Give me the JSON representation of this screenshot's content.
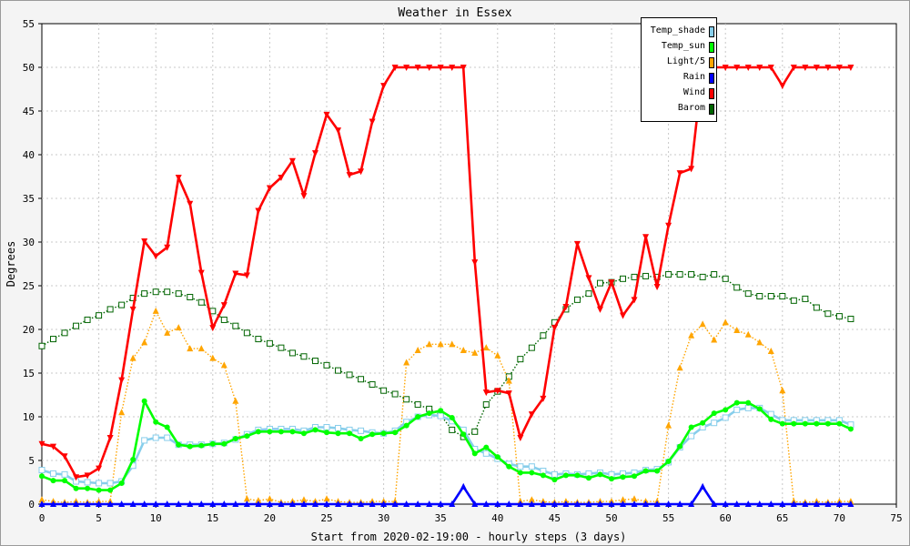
{
  "chart_data": {
    "type": "line",
    "title": "Weather in Essex",
    "xlabel": "Start from 2020-02-19:00 - hourly steps (3 days)",
    "ylabel": "Degrees",
    "xlim": [
      0,
      75
    ],
    "ylim": [
      0,
      55
    ],
    "xticks": [
      0,
      5,
      10,
      15,
      20,
      25,
      30,
      35,
      40,
      45,
      50,
      55,
      60,
      65,
      70,
      75
    ],
    "yticks": [
      0,
      5,
      10,
      15,
      20,
      25,
      30,
      35,
      40,
      45,
      50,
      55
    ],
    "grid": true,
    "legend_position": "top-right",
    "series": [
      {
        "name": "Barom",
        "color": "#006400",
        "style": "dotted",
        "marker": "square",
        "x": [
          0,
          1,
          2,
          3,
          4,
          5,
          6,
          7,
          8,
          9,
          10,
          11,
          12,
          13,
          14,
          15,
          16,
          17,
          18,
          19,
          20,
          21,
          22,
          23,
          24,
          25,
          26,
          27,
          28,
          29,
          30,
          31,
          32,
          33,
          34,
          35,
          36,
          37,
          38,
          39,
          40,
          41,
          42,
          43,
          44,
          45,
          46,
          47,
          48,
          49,
          50,
          51,
          52,
          53,
          54,
          55,
          56,
          57,
          58,
          59,
          60,
          61,
          62,
          63,
          64,
          65,
          66,
          67,
          68,
          69,
          70,
          71
        ],
        "y": [
          18.1,
          18.9,
          19.6,
          20.4,
          21.1,
          21.6,
          22.3,
          22.8,
          23.6,
          24.1,
          24.3,
          24.3,
          24.1,
          23.7,
          23.1,
          22.1,
          21.1,
          20.4,
          19.6,
          18.9,
          18.4,
          17.9,
          17.3,
          16.9,
          16.4,
          15.9,
          15.3,
          14.8,
          14.3,
          13.7,
          13.0,
          12.6,
          12.0,
          11.4,
          10.9,
          10.2,
          8.5,
          7.7,
          8.3,
          11.4,
          12.9,
          14.6,
          16.6,
          17.9,
          19.3,
          20.8,
          22.3,
          23.4,
          24.1,
          25.3,
          25.4,
          25.8,
          26.0,
          26.1,
          26.0,
          26.3,
          26.3,
          26.3,
          26.0,
          26.3,
          25.8,
          24.8,
          24.1,
          23.8,
          23.8,
          23.8,
          23.3,
          23.5,
          22.5,
          21.8,
          21.5,
          21.2
        ]
      },
      {
        "name": "Light/5",
        "color": "#ffa500",
        "style": "dotted",
        "marker": "triangle-up",
        "x": [
          0,
          1,
          2,
          3,
          4,
          5,
          6,
          7,
          8,
          9,
          10,
          11,
          12,
          13,
          14,
          15,
          16,
          17,
          18,
          19,
          20,
          21,
          22,
          23,
          24,
          25,
          26,
          27,
          28,
          29,
          30,
          31,
          32,
          33,
          34,
          35,
          36,
          37,
          38,
          39,
          40,
          41,
          42,
          43,
          44,
          45,
          46,
          47,
          48,
          49,
          50,
          51,
          52,
          53,
          54,
          55,
          56,
          57,
          58,
          59,
          60,
          61,
          62,
          63,
          64,
          65,
          66,
          67,
          68,
          69,
          70,
          71
        ],
        "y": [
          0.5,
          0.3,
          0.2,
          0.3,
          0.2,
          0.3,
          0.3,
          10.5,
          16.7,
          18.5,
          22.1,
          19.6,
          20.2,
          17.8,
          17.8,
          16.7,
          15.9,
          11.8,
          0.6,
          0.4,
          0.6,
          0.2,
          0.3,
          0.5,
          0.3,
          0.6,
          0.3,
          0.2,
          0.2,
          0.3,
          0.3,
          0.3,
          16.2,
          17.6,
          18.3,
          18.3,
          18.3,
          17.6,
          17.3,
          17.9,
          17.0,
          14.1,
          0.3,
          0.5,
          0.3,
          0.2,
          0.3,
          0.2,
          0.2,
          0.3,
          0.3,
          0.5,
          0.6,
          0.3,
          0.3,
          9.0,
          15.6,
          19.3,
          20.6,
          18.8,
          20.8,
          19.9,
          19.4,
          18.5,
          17.5,
          13.0,
          0.3,
          0.2,
          0.3,
          0.2,
          0.3,
          0.3
        ]
      },
      {
        "name": "Temp_shade",
        "color": "#87ceeb",
        "style": "solid",
        "marker": "square",
        "x": [
          0,
          1,
          2,
          3,
          4,
          5,
          6,
          7,
          8,
          9,
          10,
          11,
          12,
          13,
          14,
          15,
          16,
          17,
          18,
          19,
          20,
          21,
          22,
          23,
          24,
          25,
          26,
          27,
          28,
          29,
          30,
          31,
          32,
          33,
          34,
          35,
          36,
          37,
          38,
          39,
          40,
          41,
          42,
          43,
          44,
          45,
          46,
          47,
          48,
          49,
          50,
          51,
          52,
          53,
          54,
          55,
          56,
          57,
          58,
          59,
          60,
          61,
          62,
          63,
          64,
          65,
          66,
          67,
          68,
          69,
          70,
          71
        ],
        "y": [
          3.9,
          3.5,
          3.4,
          2.6,
          2.5,
          2.4,
          2.4,
          2.6,
          4.4,
          7.3,
          7.6,
          7.6,
          6.8,
          6.8,
          6.8,
          6.9,
          7.0,
          7.4,
          8.0,
          8.5,
          8.6,
          8.6,
          8.6,
          8.4,
          8.8,
          8.8,
          8.7,
          8.5,
          8.4,
          8.2,
          8.1,
          8.4,
          9.4,
          10.0,
          10.2,
          10.1,
          9.5,
          8.5,
          6.3,
          5.8,
          5.2,
          4.6,
          4.3,
          4.3,
          3.8,
          3.4,
          3.5,
          3.4,
          3.5,
          3.6,
          3.4,
          3.5,
          3.6,
          3.9,
          4.0,
          4.8,
          6.5,
          7.8,
          8.8,
          9.3,
          9.9,
          10.8,
          11.0,
          11.0,
          10.3,
          9.6,
          9.6,
          9.6,
          9.6,
          9.6,
          9.6,
          9.1
        ]
      },
      {
        "name": "Temp_sun",
        "color": "#00ff00",
        "style": "solid",
        "marker": "circle",
        "x": [
          0,
          1,
          2,
          3,
          4,
          5,
          6,
          7,
          8,
          9,
          10,
          11,
          12,
          13,
          14,
          15,
          16,
          17,
          18,
          19,
          20,
          21,
          22,
          23,
          24,
          25,
          26,
          27,
          28,
          29,
          30,
          31,
          32,
          33,
          34,
          35,
          36,
          37,
          38,
          39,
          40,
          41,
          42,
          43,
          44,
          45,
          46,
          47,
          48,
          49,
          50,
          51,
          52,
          53,
          54,
          55,
          56,
          57,
          58,
          59,
          60,
          61,
          62,
          63,
          64,
          65,
          66,
          67,
          68,
          69,
          70,
          71
        ],
        "y": [
          3.2,
          2.7,
          2.7,
          1.8,
          1.8,
          1.6,
          1.6,
          2.4,
          5.1,
          11.8,
          9.4,
          8.8,
          6.8,
          6.6,
          6.7,
          6.9,
          6.9,
          7.5,
          7.8,
          8.3,
          8.3,
          8.3,
          8.3,
          8.1,
          8.5,
          8.2,
          8.1,
          8.1,
          7.5,
          8.0,
          8.1,
          8.2,
          9.0,
          10.0,
          10.4,
          10.7,
          9.9,
          8.0,
          5.8,
          6.5,
          5.4,
          4.3,
          3.6,
          3.6,
          3.3,
          2.8,
          3.3,
          3.3,
          3.0,
          3.4,
          2.9,
          3.1,
          3.2,
          3.8,
          3.8,
          4.9,
          6.6,
          8.8,
          9.3,
          10.4,
          10.8,
          11.6,
          11.6,
          10.9,
          9.7,
          9.2,
          9.2,
          9.2,
          9.2,
          9.2,
          9.2,
          8.6
        ]
      },
      {
        "name": "Wind",
        "color": "#ff0000",
        "style": "solid",
        "marker": "triangle-down",
        "x": [
          0,
          1,
          2,
          3,
          4,
          5,
          6,
          7,
          8,
          9,
          10,
          11,
          12,
          13,
          14,
          15,
          16,
          17,
          18,
          19,
          20,
          21,
          22,
          23,
          24,
          25,
          26,
          27,
          28,
          29,
          30,
          31,
          32,
          33,
          34,
          35,
          36,
          37,
          38,
          39,
          40,
          41,
          42,
          43,
          44,
          45,
          46,
          47,
          48,
          49,
          50,
          51,
          52,
          53,
          54,
          55,
          56,
          57,
          58,
          59,
          60,
          61,
          62,
          63,
          64,
          65,
          66,
          67,
          68,
          69,
          70,
          71
        ],
        "y": [
          6.9,
          6.6,
          5.5,
          3.1,
          3.3,
          4.1,
          7.6,
          14.2,
          22.3,
          30.1,
          28.4,
          29.4,
          37.4,
          34.4,
          26.5,
          20.2,
          22.8,
          26.4,
          26.2,
          33.6,
          36.2,
          37.4,
          39.3,
          35.3,
          40.2,
          44.6,
          42.8,
          37.7,
          38.1,
          43.8,
          47.9,
          50,
          50,
          50,
          50,
          50,
          50,
          50,
          27.7,
          12.8,
          13.0,
          12.7,
          7.6,
          10.3,
          12.1,
          20.2,
          22.6,
          29.8,
          25.9,
          22.3,
          25.4,
          21.6,
          23.4,
          30.6,
          24.9,
          31.9,
          37.9,
          38.4,
          50,
          50,
          50,
          50,
          50,
          50,
          50,
          47.9,
          50,
          50,
          50,
          50,
          50,
          50
        ]
      },
      {
        "name": "Rain",
        "color": "#0000ff",
        "style": "solid",
        "marker": "triangle-up",
        "x": [
          0,
          1,
          2,
          3,
          4,
          5,
          6,
          7,
          8,
          9,
          10,
          11,
          12,
          13,
          14,
          15,
          16,
          17,
          18,
          19,
          20,
          21,
          22,
          23,
          24,
          25,
          26,
          27,
          28,
          29,
          30,
          31,
          32,
          33,
          34,
          35,
          36,
          37,
          38,
          39,
          40,
          41,
          42,
          43,
          44,
          45,
          46,
          47,
          48,
          49,
          50,
          51,
          52,
          53,
          54,
          55,
          56,
          57,
          58,
          59,
          60,
          61,
          62,
          63,
          64,
          65,
          66,
          67,
          68,
          69,
          70,
          71
        ],
        "y": [
          0,
          0,
          0,
          0,
          0,
          0,
          0,
          0,
          0,
          0,
          0,
          0,
          0,
          0,
          0,
          0,
          0,
          0,
          0,
          0,
          0,
          0,
          0,
          0,
          0,
          0,
          0,
          0,
          0,
          0,
          0,
          0,
          0,
          0,
          0,
          0,
          0,
          2,
          0,
          0,
          0,
          0,
          0,
          0,
          0,
          0,
          0,
          0,
          0,
          0,
          0,
          0,
          0,
          0,
          0,
          0,
          0,
          0,
          2,
          0,
          0,
          0,
          0,
          0,
          0,
          0,
          0,
          0,
          0,
          0,
          0,
          0
        ]
      }
    ],
    "legend": [
      {
        "label": "Temp_shade",
        "color": "#87ceeb"
      },
      {
        "label": "Temp_sun",
        "color": "#00ff00"
      },
      {
        "label": "Light/5",
        "color": "#ffa500"
      },
      {
        "label": "Rain",
        "color": "#0000ff"
      },
      {
        "label": "Wind",
        "color": "#ff0000"
      },
      {
        "label": "Barom",
        "color": "#006400"
      }
    ]
  }
}
